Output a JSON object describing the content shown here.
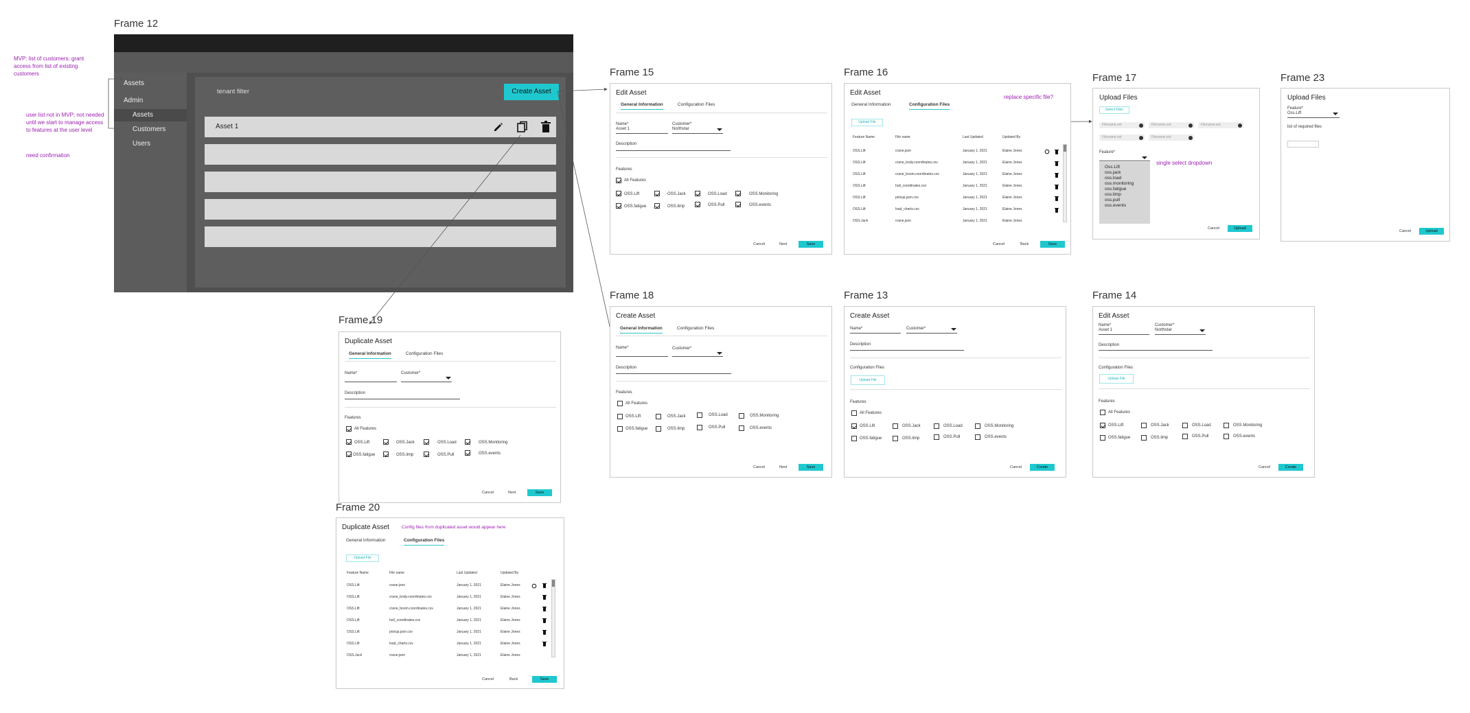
{
  "frames": {
    "f12": "Frame 12",
    "f15": "Frame 15",
    "f16": "Frame 16",
    "f17": "Frame 17",
    "f23": "Frame 23",
    "f19": "Frame 19",
    "f18": "Frame 18",
    "f13": "Frame 13",
    "f14": "Frame 14",
    "f20": "Frame 20"
  },
  "notes": {
    "mvp": "MVP: list of customers; grant access from list of existing customers",
    "userlist": "user list not in MVP; not needed until we start to manage access to features at the user level",
    "confirm": "need confirmation",
    "replace": "replace specific file?",
    "single": "single select dropdown",
    "config": "Config files from duplicated asset would appear here"
  },
  "app": {
    "sidebar": {
      "assets": "Assets",
      "admin": "Admin",
      "sub_assets": "Assets",
      "customers": "Customers",
      "users": "Users"
    },
    "tenant_filter": "tenant filter",
    "create_asset": "Create Asset",
    "asset1": "Asset 1"
  },
  "form": {
    "edit_asset": "Edit Asset",
    "create_asset": "Create Asset",
    "duplicate_asset": "Duplicate Asset",
    "upload_files": "Upload Files",
    "tab_general": "General Information",
    "tab_config": "Configuration Files",
    "name": "Name*",
    "customer": "Customer*",
    "description": "Description",
    "features": "Features",
    "all_features": "All Features",
    "name_val": "Asset 1",
    "customer_val": "Northstar",
    "config_files": "Configuration Files",
    "upload_file": "Upload File",
    "select_files": "Select Files",
    "feature": "Feature*",
    "feature_val": "Oss.Lift",
    "required_files": "list of required files",
    "cancel": "Cancel",
    "next": "Next",
    "back": "Back",
    "save": "Save",
    "create": "Create",
    "upload": "Upload",
    "filename": "Filename.ext"
  },
  "features": [
    "OSS.Lift",
    "OSS.Jack",
    "OSS.Load",
    "OSS.Monitoring",
    "OSS.fatigue",
    "OSS.limp",
    "OSS.Pull",
    "OSS.events"
  ],
  "dropdown_options": [
    "Oss.Lift",
    "oss.jack",
    "oss.load",
    "oss.monitoring",
    "oss.fatigue",
    "oss.limp",
    "oss.pull",
    "oss.events"
  ],
  "table": {
    "headers": [
      "Feature Name",
      "File name",
      "Last Updated",
      "Updated By"
    ],
    "rows": [
      [
        "OSS.Lift",
        "crane.json",
        "January 1, 2021",
        "Elaine Jones"
      ],
      [
        "OSS.Lift",
        "crane_body.coordinates.csv",
        "January 1, 2021",
        "Elaine Jones"
      ],
      [
        "OSS.Lift",
        "crane_boom.coordinates.csv",
        "January 1, 2021",
        "Elaine Jones"
      ],
      [
        "OSS.Lift",
        "hull_coordinates.csv",
        "January 1, 2021",
        "Elaine Jones"
      ],
      [
        "OSS.Lift",
        "pickup.json.csv",
        "January 1, 2021",
        "Elaine Jones"
      ],
      [
        "OSS.Lift",
        "load_charts.csv",
        "January 1, 2021",
        "Elaine Jones"
      ],
      [
        "OSS.Jack",
        "crane.json",
        "January 1, 2021",
        "Elaine Jones"
      ]
    ]
  },
  "checked": {
    "f15": [
      true,
      true,
      true,
      true,
      true,
      true,
      true,
      true
    ],
    "f19": [
      true,
      true,
      true,
      true,
      true,
      true,
      true,
      true
    ],
    "f18": [
      false,
      false,
      false,
      false,
      false,
      false,
      false,
      false
    ],
    "f13": [
      true,
      false,
      false,
      false,
      false,
      false,
      false,
      false
    ],
    "f14": [
      true,
      false,
      false,
      false,
      false,
      false,
      false,
      false
    ]
  }
}
